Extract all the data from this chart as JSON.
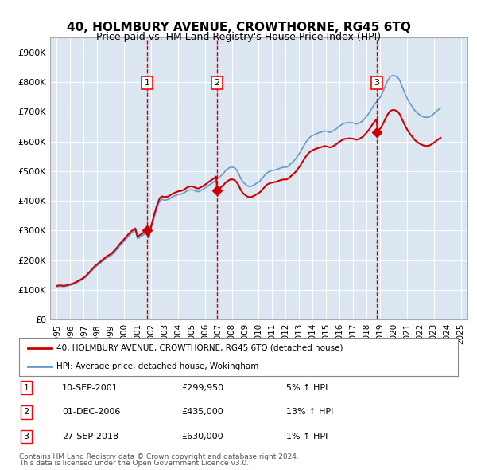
{
  "title": "40, HOLMBURY AVENUE, CROWTHORNE, RG45 6TQ",
  "subtitle": "Price paid vs. HM Land Registry's House Price Index (HPI)",
  "background_color": "#ffffff",
  "plot_bg_color": "#dce6f1",
  "grid_color": "#ffffff",
  "red_line_color": "#cc0000",
  "blue_line_color": "#6699cc",
  "sale_marker_color": "#cc0000",
  "dashed_line_color": "#cc0000",
  "ylim": [
    0,
    950000
  ],
  "yticks": [
    0,
    100000,
    200000,
    300000,
    400000,
    500000,
    600000,
    700000,
    800000,
    900000
  ],
  "ytick_labels": [
    "£0",
    "£100K",
    "£200K",
    "£300K",
    "£400K",
    "£500K",
    "£600K",
    "£700K",
    "£800K",
    "£900K"
  ],
  "xlim_start": 1994.5,
  "xlim_end": 2025.5,
  "xtick_years": [
    1995,
    1996,
    1997,
    1998,
    1999,
    2000,
    2001,
    2002,
    2003,
    2004,
    2005,
    2006,
    2007,
    2008,
    2009,
    2010,
    2011,
    2012,
    2013,
    2014,
    2015,
    2016,
    2017,
    2018,
    2019,
    2020,
    2021,
    2022,
    2023,
    2024,
    2025
  ],
  "sales": [
    {
      "year": 2001.7,
      "price": 299950,
      "label": "1"
    },
    {
      "year": 2006.9,
      "price": 435000,
      "label": "2"
    },
    {
      "year": 2018.75,
      "price": 630000,
      "label": "3"
    }
  ],
  "sale_table": [
    {
      "num": "1",
      "date": "10-SEP-2001",
      "price": "£299,950",
      "pct": "5% ↑ HPI"
    },
    {
      "num": "2",
      "date": "01-DEC-2006",
      "price": "£435,000",
      "pct": "13% ↑ HPI"
    },
    {
      "num": "3",
      "date": "27-SEP-2018",
      "price": "£630,000",
      "pct": "1% ↑ HPI"
    }
  ],
  "legend_line1": "40, HOLMBURY AVENUE, CROWTHORNE, RG45 6TQ (detached house)",
  "legend_line2": "HPI: Average price, detached house, Wokingham",
  "footer1": "Contains HM Land Registry data © Crown copyright and database right 2024.",
  "footer2": "This data is licensed under the Open Government Licence v3.0.",
  "hpi_data_y": [
    111000,
    111500,
    112000,
    112500,
    112000,
    111500,
    111000,
    111500,
    112000,
    113000,
    114000,
    115000,
    116000,
    117000,
    118000,
    119500,
    121000,
    123000,
    125000,
    127000,
    129000,
    131000,
    133000,
    135500,
    138000,
    141000,
    144000,
    148000,
    152000,
    156000,
    160000,
    164000,
    168000,
    172000,
    176000,
    179000,
    182000,
    185000,
    188000,
    191000,
    194000,
    197000,
    200000,
    203000,
    206000,
    209000,
    211000,
    213000,
    215000,
    218000,
    222000,
    226000,
    230000,
    234000,
    238000,
    243000,
    248000,
    252000,
    256000,
    260000,
    264000,
    268500,
    273000,
    277000,
    281000,
    285000,
    289000,
    292000,
    294500,
    297000,
    299500,
    286000,
    272500,
    275000,
    277500,
    280000,
    282500,
    285000,
    287500,
    290000,
    292500,
    283000,
    273500,
    290000,
    306500,
    319000,
    332500,
    347000,
    360000,
    373000,
    383000,
    393000,
    400000,
    403000,
    405000,
    403500,
    402000,
    403000,
    403500,
    404500,
    406000,
    408500,
    411000,
    413000,
    415000,
    416500,
    418000,
    419500,
    421000,
    422000,
    422500,
    423000,
    424500,
    426000,
    428500,
    431000,
    433500,
    435500,
    436500,
    437500,
    437500,
    437000,
    436000,
    434500,
    432000,
    431500,
    431000,
    432000,
    434000,
    436000,
    438000,
    440500,
    443000,
    445500,
    448000,
    451000,
    454000,
    456000,
    458500,
    461000,
    464000,
    467000,
    470000,
    473000,
    476500,
    479500,
    483500,
    487000,
    491000,
    495000,
    499500,
    504000,
    506500,
    509500,
    512000,
    513000,
    514000,
    513000,
    511500,
    509000,
    504500,
    499000,
    492500,
    483500,
    474500,
    469000,
    463000,
    459500,
    456500,
    453000,
    451000,
    449000,
    448000,
    449000,
    450000,
    452000,
    454000,
    456500,
    459000,
    461000,
    463500,
    467000,
    471000,
    475500,
    480000,
    485000,
    489500,
    493500,
    496000,
    498000,
    499500,
    501000,
    502000,
    503000,
    503500,
    504000,
    505500,
    507000,
    508500,
    510000,
    511500,
    512500,
    513000,
    513500,
    513000,
    514000,
    516000,
    519000,
    523000,
    526500,
    530000,
    534000,
    537500,
    542000,
    547500,
    553000,
    558500,
    565000,
    571000,
    578000,
    584500,
    591000,
    597500,
    603000,
    607500,
    612000,
    615500,
    618000,
    620500,
    622000,
    624000,
    625500,
    627000,
    628500,
    630000,
    631000,
    632000,
    633500,
    635000,
    635500,
    635000,
    634000,
    632000,
    631500,
    631000,
    633000,
    635000,
    637000,
    639500,
    642000,
    645500,
    649000,
    652000,
    654500,
    657000,
    659500,
    661000,
    662000,
    662500,
    663000,
    663500,
    664000,
    663500,
    663000,
    662500,
    661500,
    660000,
    659000,
    660000,
    661000,
    663000,
    665500,
    668000,
    671000,
    675000,
    679500,
    684000,
    689000,
    694500,
    700000,
    706500,
    713000,
    719000,
    724500,
    729000,
    733500,
    738000,
    743000,
    748000,
    754000,
    762000,
    770000,
    779500,
    789000,
    798000,
    805500,
    812000,
    818000,
    820000,
    822000,
    822000,
    822000,
    820000,
    818500,
    815000,
    809500,
    803000,
    793000,
    783000,
    774000,
    765000,
    756000,
    748000,
    740000,
    733500,
    727500,
    722000,
    716000,
    710500,
    705000,
    701000,
    697500,
    694000,
    691000,
    688500,
    686500,
    684500,
    683000,
    682000,
    681000,
    681500,
    682000,
    683000,
    685000,
    687500,
    690000,
    693500,
    697000,
    700500,
    704000,
    707000,
    710000,
    713000
  ]
}
